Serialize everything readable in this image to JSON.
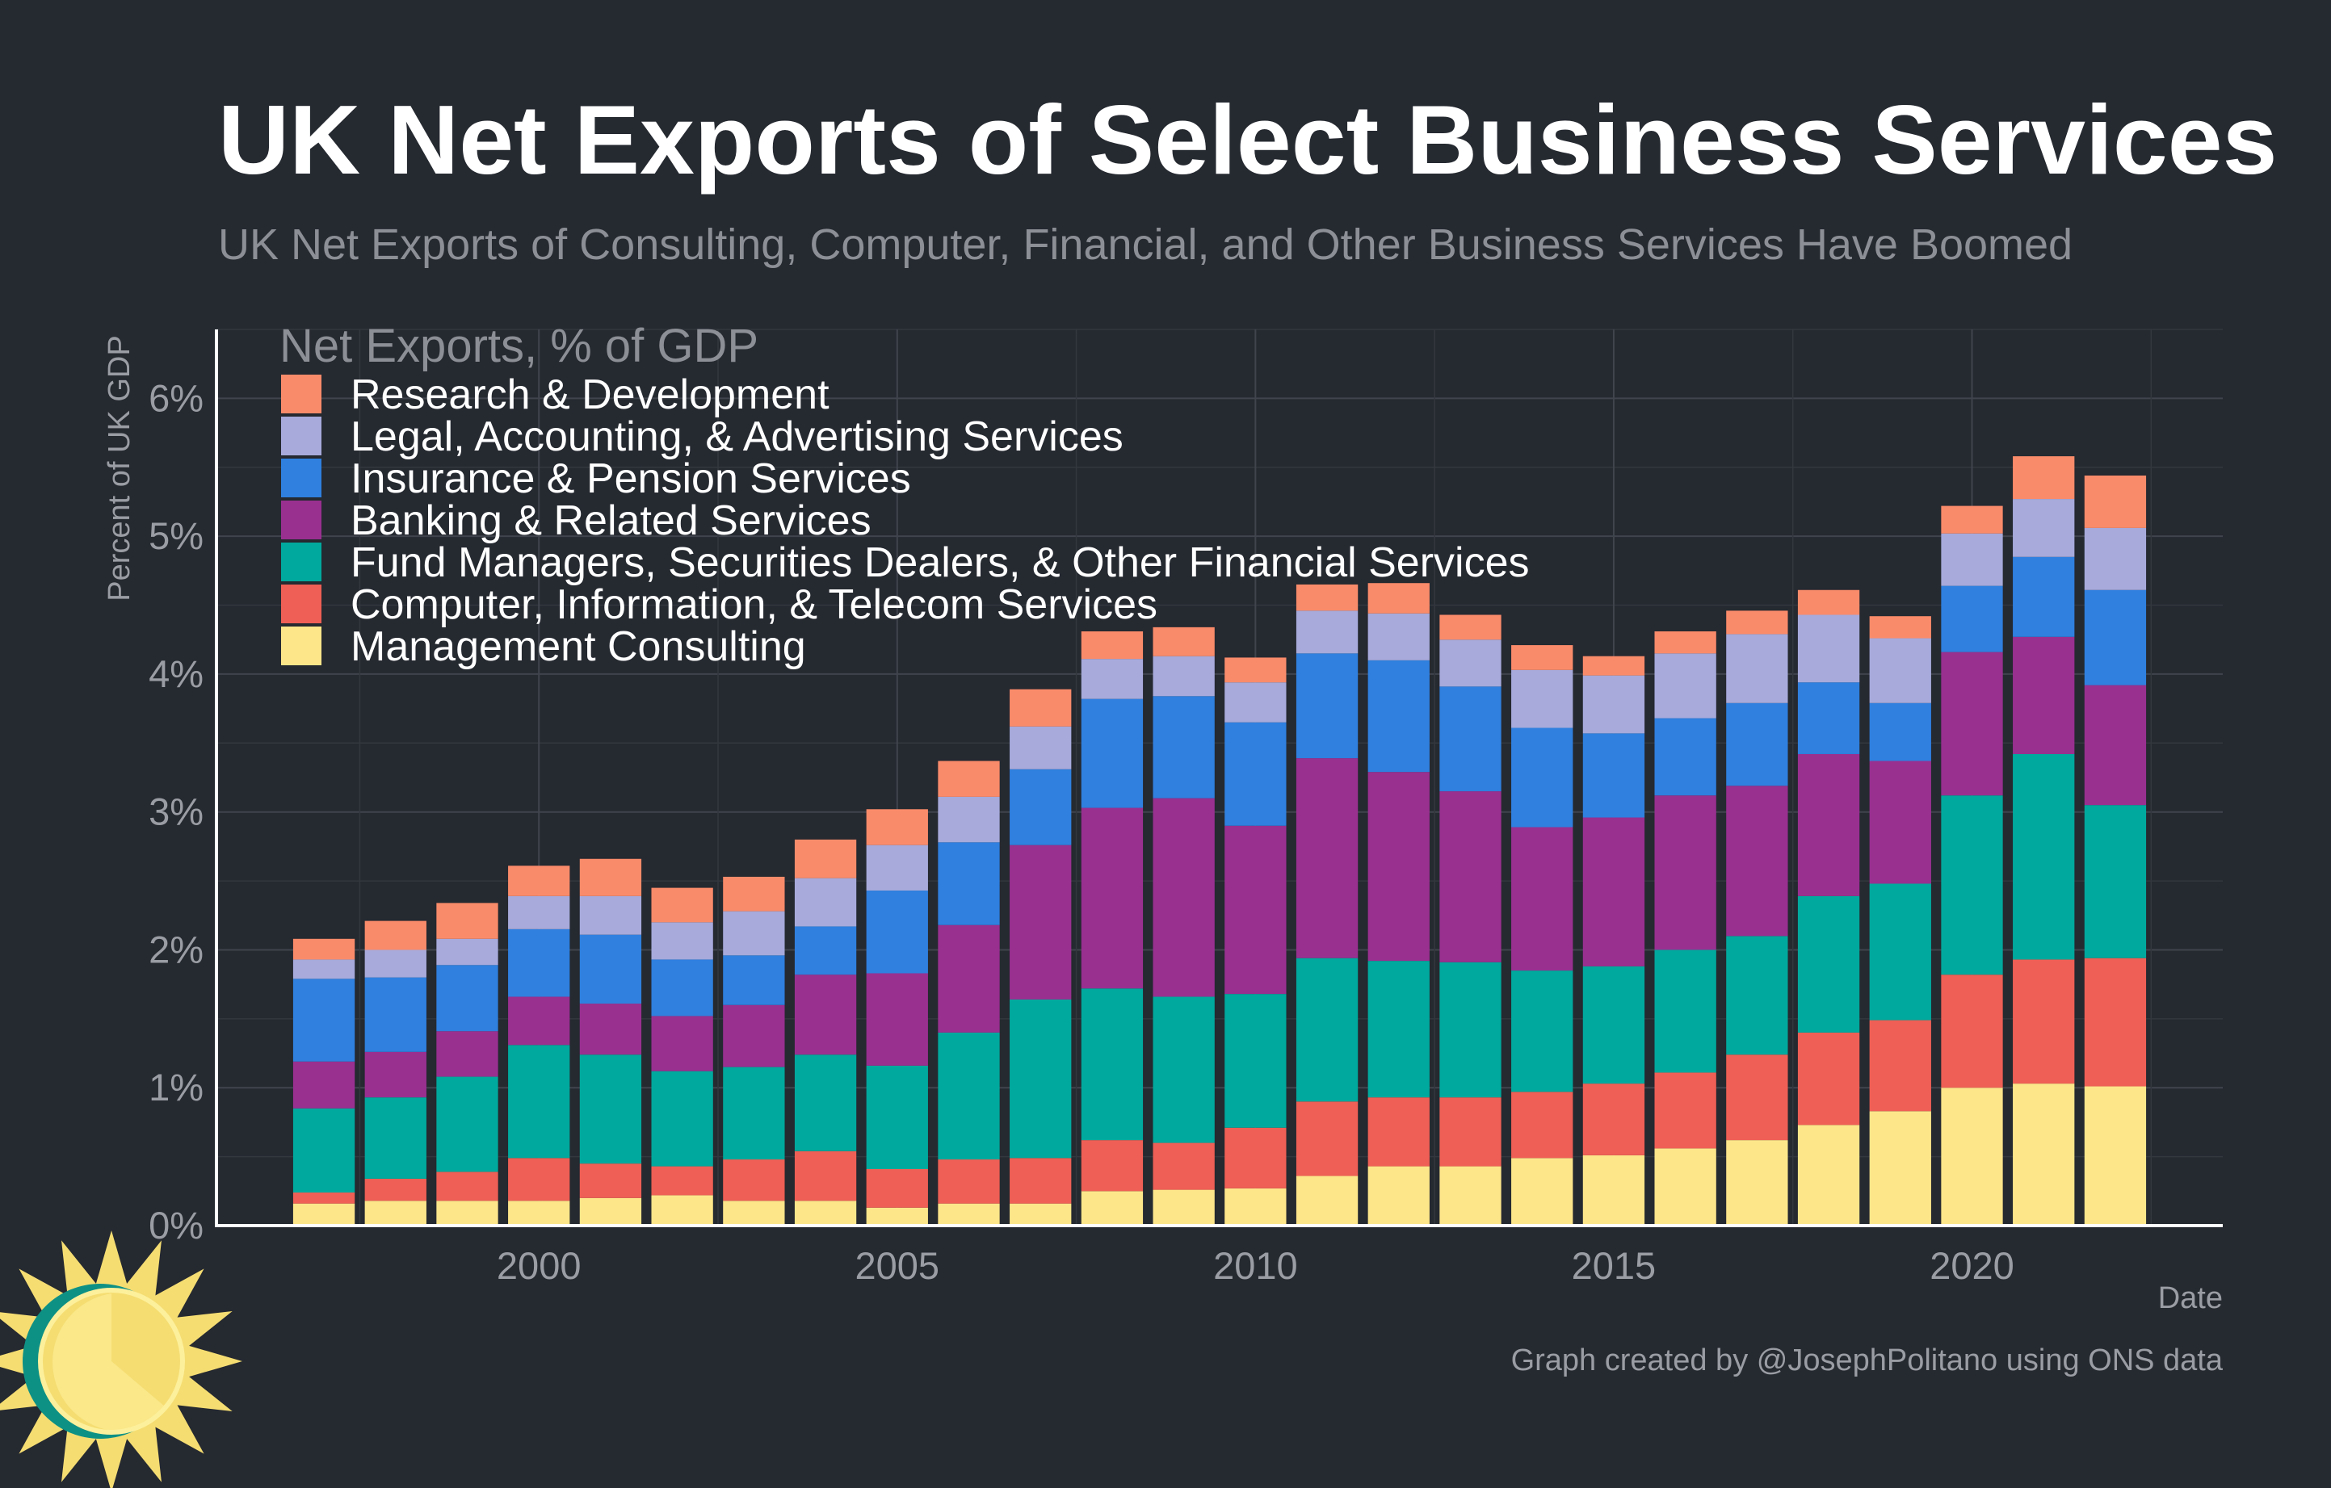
{
  "header": {
    "title": "UK Net Exports of Select Business Services",
    "subtitle": "UK Net Exports of Consulting, Computer, Financial, and Other Business Services Have Boomed"
  },
  "footer": {
    "credit": "Graph created by @JosephPolitano using ONS data"
  },
  "chart_data": {
    "type": "bar",
    "stacked": true,
    "xlabel": "Date",
    "ylabel": "Percent of UK GDP",
    "ylim": [
      0,
      6.5
    ],
    "y_ticks": [
      0,
      1,
      2,
      3,
      4,
      5,
      6
    ],
    "y_tick_labels": [
      "0%",
      "1%",
      "2%",
      "3%",
      "4%",
      "5%",
      "6%"
    ],
    "x_ticks": [
      2000,
      2005,
      2010,
      2015,
      2020
    ],
    "xlim": [
      1995.5,
      2023.5
    ],
    "grid": true,
    "legend": {
      "title": "Net Exports, % of GDP",
      "position": "top-left"
    },
    "x": [
      1997,
      1998,
      1999,
      2000,
      2001,
      2002,
      2003,
      2004,
      2005,
      2006,
      2007,
      2008,
      2009,
      2010,
      2011,
      2012,
      2013,
      2014,
      2015,
      2016,
      2017,
      2018,
      2019,
      2020,
      2021,
      2022
    ],
    "series": [
      {
        "name": "Management Consulting",
        "color": "#fde68a",
        "values": [
          0.16,
          0.18,
          0.18,
          0.18,
          0.2,
          0.22,
          0.18,
          0.18,
          0.13,
          0.16,
          0.16,
          0.25,
          0.26,
          0.27,
          0.36,
          0.43,
          0.43,
          0.49,
          0.51,
          0.56,
          0.62,
          0.73,
          0.83,
          1.0,
          1.03,
          1.01
        ]
      },
      {
        "name": "Computer, Information, & Telecom Services",
        "color": "#ef5f55",
        "values": [
          0.08,
          0.16,
          0.21,
          0.31,
          0.25,
          0.21,
          0.3,
          0.36,
          0.28,
          0.32,
          0.33,
          0.37,
          0.34,
          0.44,
          0.54,
          0.5,
          0.5,
          0.48,
          0.52,
          0.55,
          0.62,
          0.67,
          0.66,
          0.82,
          0.9,
          0.93
        ]
      },
      {
        "name": "Fund Managers, Securities Dealers, & Other Financial Services",
        "color": "#00a99d",
        "values": [
          0.61,
          0.59,
          0.69,
          0.82,
          0.79,
          0.69,
          0.67,
          0.7,
          0.75,
          0.92,
          1.15,
          1.1,
          1.06,
          0.97,
          1.04,
          0.99,
          0.98,
          0.88,
          0.85,
          0.89,
          0.86,
          0.99,
          0.99,
          1.3,
          1.49,
          1.11
        ]
      },
      {
        "name": "Banking & Related Services",
        "color": "#993090",
        "values": [
          0.34,
          0.33,
          0.33,
          0.35,
          0.37,
          0.4,
          0.45,
          0.58,
          0.67,
          0.78,
          1.12,
          1.31,
          1.44,
          1.22,
          1.45,
          1.37,
          1.24,
          1.04,
          1.08,
          1.12,
          1.09,
          1.03,
          0.89,
          1.04,
          0.85,
          0.87
        ]
      },
      {
        "name": "Insurance & Pension Services",
        "color": "#2f80df",
        "values": [
          0.6,
          0.54,
          0.48,
          0.49,
          0.5,
          0.41,
          0.36,
          0.35,
          0.6,
          0.6,
          0.55,
          0.79,
          0.74,
          0.75,
          0.76,
          0.81,
          0.76,
          0.72,
          0.61,
          0.56,
          0.6,
          0.52,
          0.42,
          0.48,
          0.58,
          0.69
        ]
      },
      {
        "name": "Legal, Accounting, & Advertising Services",
        "color": "#a7aadb",
        "values": [
          0.14,
          0.2,
          0.19,
          0.24,
          0.28,
          0.27,
          0.32,
          0.35,
          0.33,
          0.33,
          0.31,
          0.29,
          0.29,
          0.29,
          0.31,
          0.34,
          0.34,
          0.42,
          0.42,
          0.47,
          0.5,
          0.49,
          0.47,
          0.38,
          0.42,
          0.45
        ]
      },
      {
        "name": "Research & Development",
        "color": "#fa8b6a",
        "values": [
          0.15,
          0.21,
          0.26,
          0.22,
          0.27,
          0.25,
          0.25,
          0.28,
          0.26,
          0.26,
          0.27,
          0.2,
          0.21,
          0.18,
          0.19,
          0.22,
          0.18,
          0.18,
          0.14,
          0.16,
          0.17,
          0.18,
          0.16,
          0.2,
          0.31,
          0.38
        ]
      }
    ]
  },
  "logo": {
    "name": "sun-logo-icon",
    "colors": [
      "#f5dd72",
      "#0e9185",
      "#fdf09c"
    ]
  }
}
